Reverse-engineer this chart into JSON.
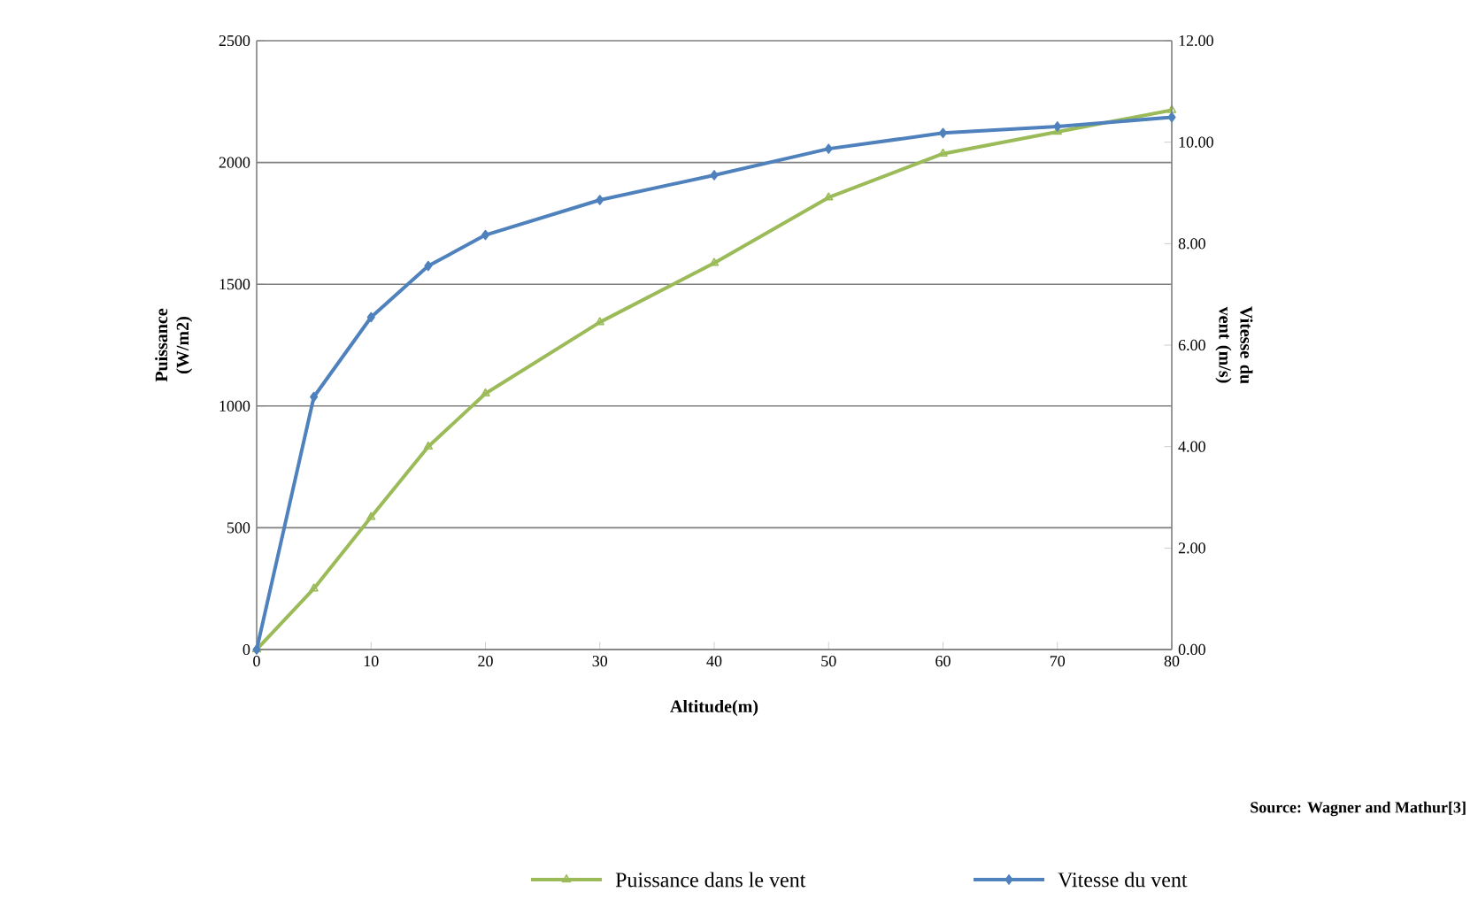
{
  "chart_data": {
    "type": "line",
    "xlabel": "Altitude(m)",
    "ylabel": "Puissance (W/m2)",
    "y2label": "Vitesse du vent (m/s)",
    "x": [
      0,
      5,
      10,
      15,
      20,
      30,
      40,
      50,
      60,
      70,
      80
    ],
    "series": [
      {
        "name": "Puissance dans le vent",
        "color": "#9bbb59",
        "marker": "triangle",
        "values": [
          0,
          250,
          544,
          833,
          1051,
          1344,
          1587,
          1856,
          2036,
          2126,
          2215
        ]
      },
      {
        "name": "Vitesse du vent",
        "color": "#4f81bd",
        "marker": "diamond",
        "axis": "y2",
        "values": [
          0,
          4.98,
          6.55,
          7.56,
          8.17,
          8.86,
          9.35,
          9.87,
          10.18,
          10.31,
          10.49
        ]
      }
    ],
    "xlim": [
      0,
      80
    ],
    "xticks": [
      0,
      10,
      20,
      30,
      40,
      50,
      60,
      70,
      80
    ],
    "ylim": [
      0,
      2500
    ],
    "yticks": [
      0,
      500,
      1000,
      1500,
      2000,
      2500
    ],
    "y2lim": [
      0,
      12
    ],
    "y2ticks": [
      {
        "value": 0,
        "label": "0.00"
      },
      {
        "value": 2,
        "label": "2.00"
      },
      {
        "value": 4,
        "label": "4.00"
      },
      {
        "value": 6,
        "label": "6.00"
      },
      {
        "value": 8,
        "label": "8.00"
      },
      {
        "value": 10,
        "label": "10.00"
      },
      {
        "value": 12,
        "label": "12.00"
      }
    ],
    "grid": "y",
    "legend": "bottom",
    "line_style": "solid",
    "annotations": [
      "Source: Wagner and Mathur[3]"
    ]
  }
}
